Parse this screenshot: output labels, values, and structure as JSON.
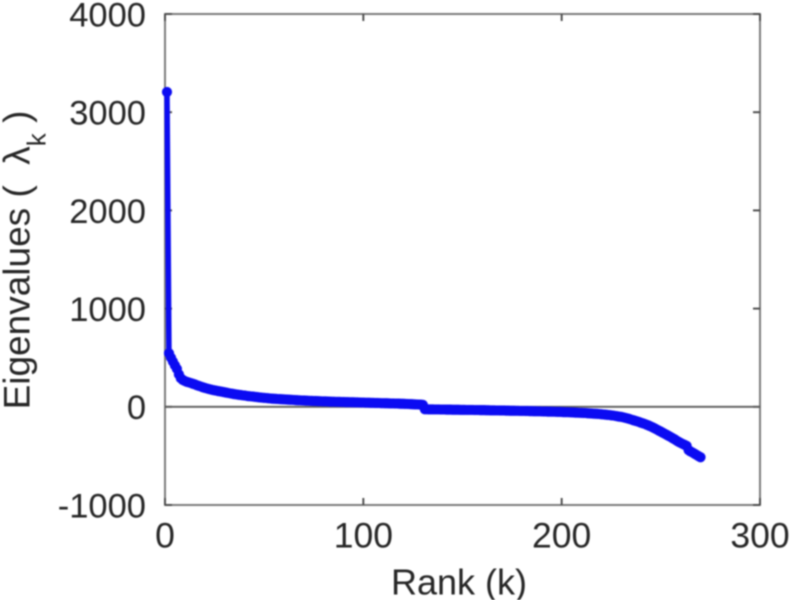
{
  "figure": {
    "type": "matlab-style-plot",
    "background": "#ffffff"
  },
  "chart_data": {
    "type": "line",
    "title": "",
    "xlabel": "Rank (k)",
    "ylabel": "Eigenvalues ( λ_k )",
    "ylabel_parts": {
      "prefix": "Eigenvalues (  ",
      "symbol": "λ",
      "subscript": "k",
      "suffix": " )"
    },
    "xlim": [
      0,
      300
    ],
    "ylim": [
      -1000,
      4000
    ],
    "xticks": [
      0,
      100,
      200,
      300
    ],
    "yticks": [
      -1000,
      0,
      1000,
      2000,
      3000,
      4000
    ],
    "grid": false,
    "box": true,
    "zero_line": true,
    "legend_position": "none",
    "series": [
      {
        "name": "eigenvalues",
        "marker": "circle",
        "line_style": "solid",
        "x_start": 1,
        "x_step": 1,
        "n_points": 270,
        "y": [
          3206,
          545,
          500,
          460,
          422,
          386,
          330,
          290,
          273,
          262,
          254,
          248,
          242,
          235,
          228,
          220,
          213,
          206,
          199,
          193,
          187,
          181,
          176,
          171,
          167,
          164,
          160,
          156,
          152,
          148,
          144,
          140,
          136,
          133,
          129,
          126,
          123,
          120,
          117,
          115,
          112,
          109,
          107,
          105,
          102,
          100,
          97,
          95,
          93,
          91,
          89,
          87,
          85,
          83,
          82,
          81,
          79,
          78,
          77,
          76,
          74,
          73,
          72,
          71,
          70,
          68,
          67,
          66,
          65,
          64,
          63,
          62,
          61,
          60,
          59,
          59,
          58,
          57,
          56,
          55,
          55,
          54,
          53,
          52,
          52,
          51,
          51,
          50,
          49,
          49,
          48,
          48,
          47,
          46,
          46,
          45,
          45,
          44,
          43,
          43,
          42,
          42,
          41,
          40,
          40,
          39,
          39,
          38,
          37,
          37,
          36,
          36,
          35,
          34,
          34,
          33,
          33,
          32,
          31,
          31,
          30,
          29,
          28,
          27,
          26,
          25,
          24,
          23,
          22,
          20,
          -25,
          -25,
          -26,
          -26,
          -26,
          -27,
          -27,
          -27,
          -28,
          -28,
          -28,
          -29,
          -29,
          -29,
          -30,
          -30,
          -30,
          -30,
          -31,
          -31,
          -31,
          -32,
          -32,
          -32,
          -32,
          -33,
          -33,
          -33,
          -34,
          -34,
          -34,
          -35,
          -35,
          -36,
          -36,
          -36,
          -37,
          -37,
          -38,
          -38,
          -38,
          -39,
          -39,
          -40,
          -40,
          -40,
          -41,
          -41,
          -42,
          -42,
          -42,
          -43,
          -43,
          -44,
          -44,
          -45,
          -45,
          -46,
          -46,
          -47,
          -48,
          -48,
          -49,
          -49,
          -50,
          -50,
          -51,
          -52,
          -52,
          -53,
          -54,
          -55,
          -55,
          -56,
          -57,
          -58,
          -59,
          -60,
          -61,
          -62,
          -63,
          -64,
          -66,
          -67,
          -68,
          -70,
          -71,
          -72,
          -74,
          -76,
          -78,
          -80,
          -82,
          -84,
          -87,
          -89,
          -93,
          -96,
          -100,
          -103,
          -107,
          -112,
          -117,
          -123,
          -130,
          -136,
          -142,
          -148,
          -155,
          -162,
          -169,
          -176,
          -184,
          -192,
          -201,
          -211,
          -221,
          -232,
          -243,
          -253,
          -264,
          -275,
          -286,
          -297,
          -308,
          -320,
          -332,
          -345,
          -357,
          -368,
          -378,
          -388,
          -398,
          -441,
          -455,
          -466,
          -478,
          -490,
          -502,
          -514
        ]
      }
    ],
    "colors": {
      "line": "#0b0bf2",
      "axis": "#757575",
      "tick": "#484848",
      "zero_line": "#5a5a5a",
      "text": "#262626",
      "background": "#ffffff"
    }
  }
}
